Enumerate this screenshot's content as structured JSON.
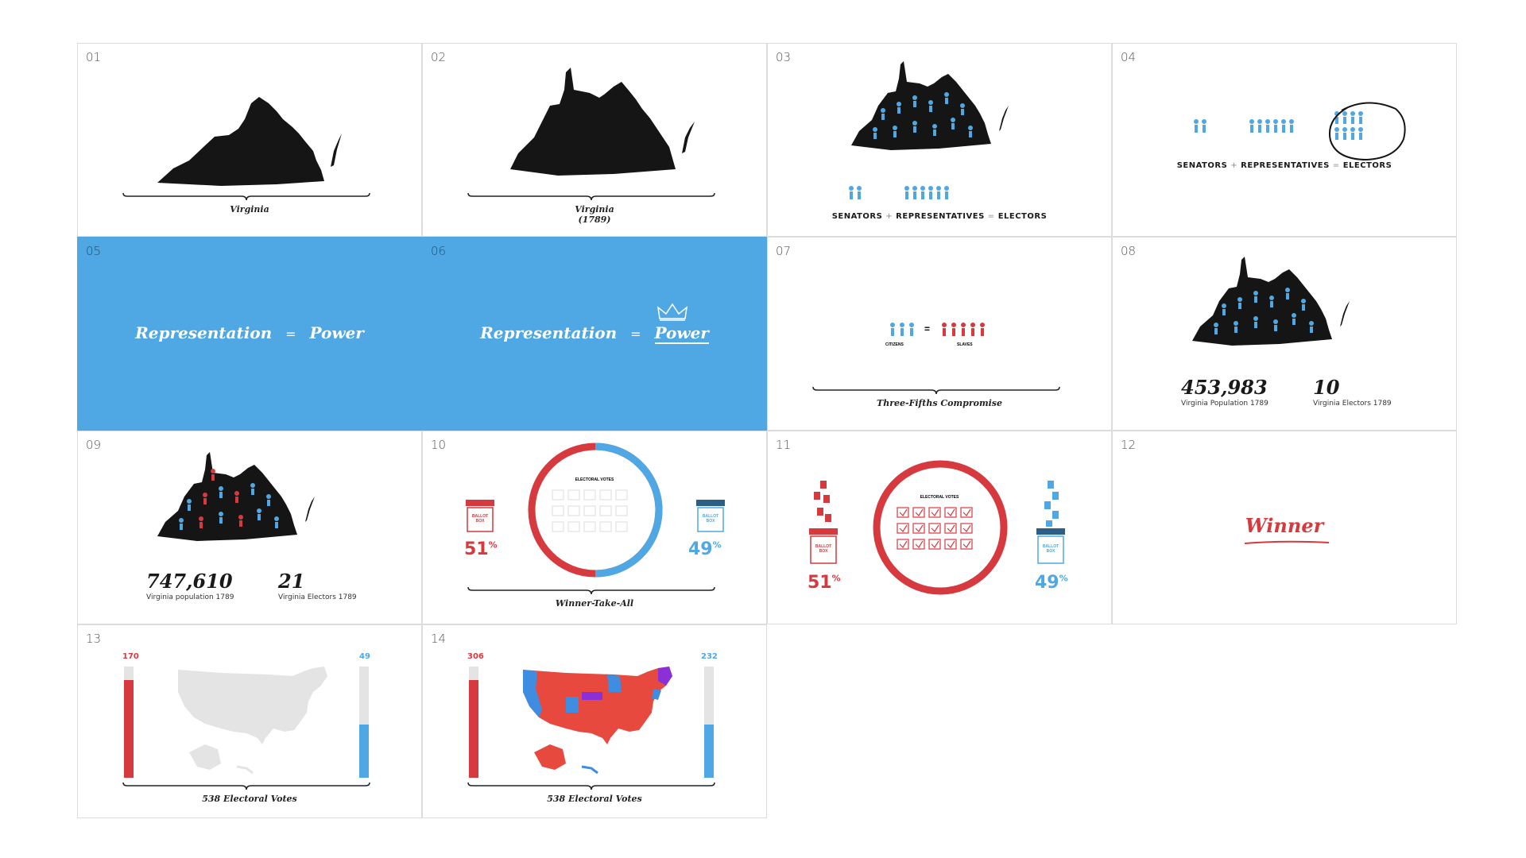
{
  "panels": [
    {
      "num": "01",
      "caption": "Virginia"
    },
    {
      "num": "02",
      "caption": "Virginia",
      "caption2": "(1789)"
    },
    {
      "num": "03",
      "senators": "SENATORS",
      "plus": "+",
      "representatives": "REPRESENTATIVES",
      "equals": "=",
      "electors": "ELECTORS"
    },
    {
      "num": "04",
      "senators": "SENATORS",
      "plus": "+",
      "representatives": "REPRESENTATIVES",
      "equals": "=",
      "electors": "ELECTORS"
    },
    {
      "num": "05",
      "left": "Representation",
      "equals": "=",
      "right": "Power"
    },
    {
      "num": "06",
      "left": "Representation",
      "equals": "=",
      "right": "Power"
    },
    {
      "num": "07",
      "citizens": "CITIZENS",
      "equals": "=",
      "slaves": "SLAVES",
      "caption": "Three-Fifths Compromise"
    },
    {
      "num": "08",
      "population": "453,983",
      "population_label": "Virginia Population 1789",
      "electors": "10",
      "electors_label": "Virginia Electors 1789"
    },
    {
      "num": "09",
      "population": "747,610",
      "population_label": "Virginia population 1789",
      "electors": "21",
      "electors_label": "Virginia Electors 1789"
    },
    {
      "num": "10",
      "box_label": "BALLOT BOX",
      "donut_title": "ELECTORAL VOTES",
      "red_pct": "51",
      "blue_pct": "49",
      "pct_sign": "%",
      "caption": "Winner-Take-All"
    },
    {
      "num": "11",
      "box_label": "BALLOT BOX",
      "donut_title": "ELECTORAL VOTES",
      "red_pct": "51",
      "blue_pct": "49",
      "pct_sign": "%"
    },
    {
      "num": "12",
      "word": "Winner"
    },
    {
      "num": "13",
      "red_value": "170",
      "blue_value": "49",
      "caption": "538 Electoral Votes"
    },
    {
      "num": "14",
      "red_value": "306",
      "blue_value": "232",
      "caption": "538 Electoral Votes"
    }
  ],
  "colors": {
    "blue": "#4fa8e3",
    "red": "#d63a3f",
    "black": "#151515",
    "gray": "#e4e4e4"
  }
}
